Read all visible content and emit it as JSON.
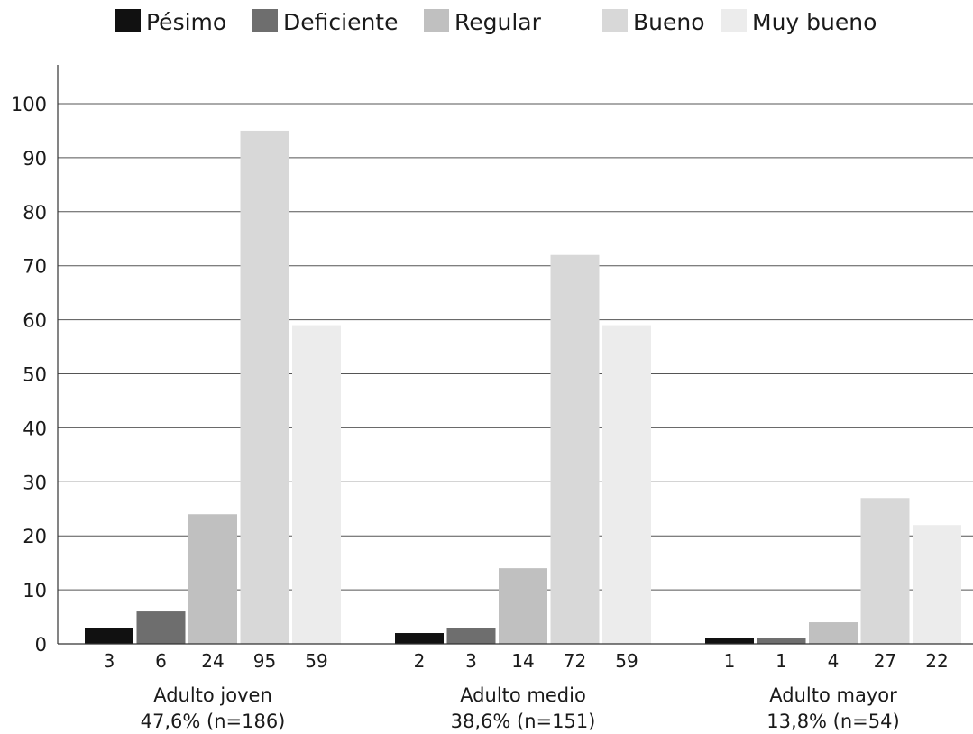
{
  "chart_data": {
    "type": "bar",
    "title": "",
    "xlabel": "",
    "ylabel": "",
    "ylim": [
      0,
      100
    ],
    "yticks": [
      0,
      10,
      20,
      30,
      40,
      50,
      60,
      70,
      80,
      90,
      100
    ],
    "grid": true,
    "legend_position": "top",
    "categories": [
      {
        "name": "Adulto joven",
        "subtitle": "47,6% (n=186)"
      },
      {
        "name": "Adulto medio",
        "subtitle": "38,6% (n=151)"
      },
      {
        "name": "Adulto mayor",
        "subtitle": "13,8% (n=54)"
      }
    ],
    "series": [
      {
        "name": "Pésimo",
        "color": "#111111",
        "values": [
          3,
          2,
          1
        ]
      },
      {
        "name": "Deficiente",
        "color": "#6e6e6e",
        "values": [
          6,
          3,
          1
        ]
      },
      {
        "name": "Regular",
        "color": "#c0c0c0",
        "values": [
          24,
          14,
          4
        ]
      },
      {
        "name": "Bueno",
        "color": "#d8d8d8",
        "values": [
          95,
          72,
          27
        ]
      },
      {
        "name": "Muy bueno",
        "color": "#ececec",
        "values": [
          59,
          59,
          22
        ]
      }
    ]
  }
}
